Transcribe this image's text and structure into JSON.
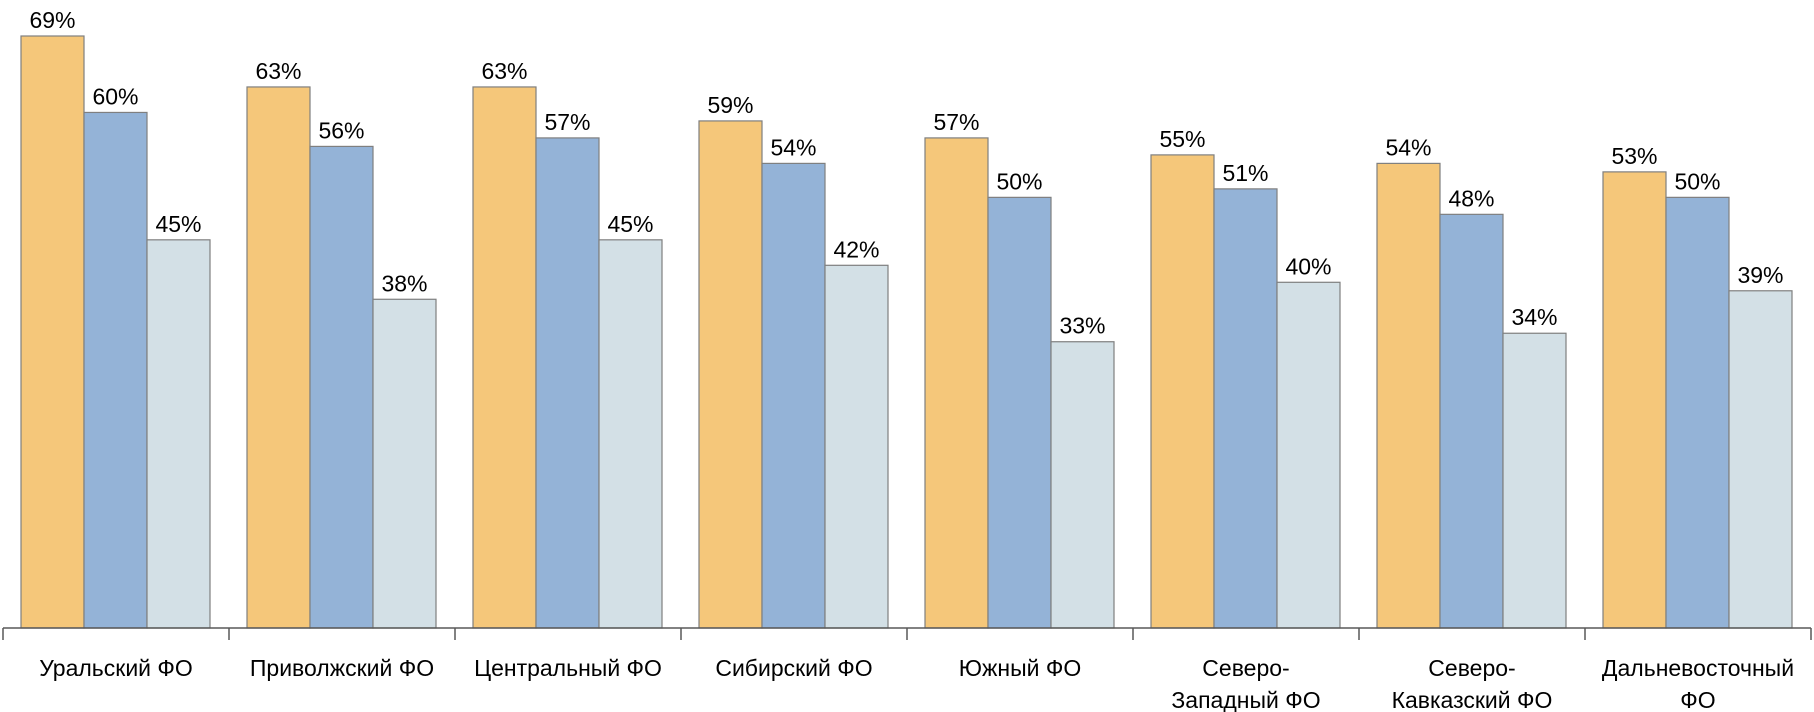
{
  "chart_data": {
    "type": "bar",
    "categories": [
      [
        "Уральский ФО"
      ],
      [
        "Приволжский ФО"
      ],
      [
        "Центральный ФО"
      ],
      [
        "Сибирский ФО"
      ],
      [
        "Южный ФО"
      ],
      [
        "Северо-",
        "Западный ФО"
      ],
      [
        "Северо-",
        "Кавказский ФО"
      ],
      [
        "Дальневосточный",
        "ФО"
      ]
    ],
    "series": [
      {
        "color": "#F5C77A",
        "values": [
          69,
          63,
          63,
          59,
          57,
          55,
          54,
          53
        ],
        "labels": [
          "69%",
          "63%",
          "63%",
          "59%",
          "57%",
          "55%",
          "54%",
          "53%"
        ]
      },
      {
        "color": "#94B3D7",
        "values": [
          60,
          56,
          57,
          54,
          50,
          51,
          48,
          50
        ],
        "labels": [
          "60%",
          "56%",
          "57%",
          "54%",
          "50%",
          "51%",
          "48%",
          "50%"
        ]
      },
      {
        "color": "#D3E0E6",
        "values": [
          45,
          38,
          45,
          42,
          33,
          40,
          34,
          39
        ],
        "labels": [
          "45%",
          "38%",
          "45%",
          "42%",
          "33%",
          "40%",
          "34%",
          "39%"
        ]
      }
    ],
    "ylim": [
      0,
      69
    ],
    "grid": false,
    "legend": "none"
  }
}
